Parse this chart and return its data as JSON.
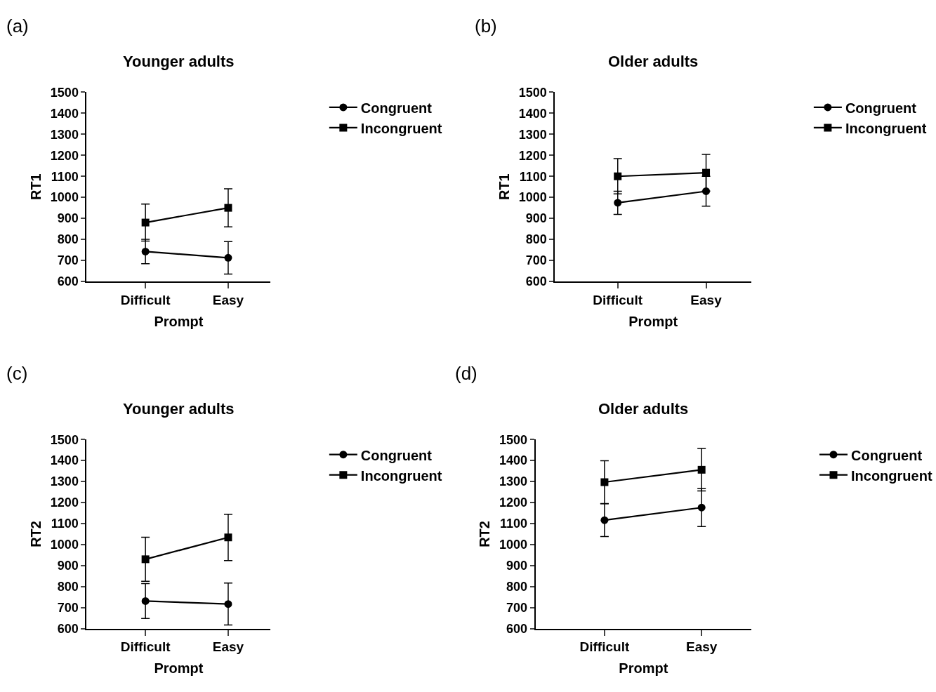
{
  "chart_data": [
    {
      "type": "line",
      "title": "Younger adults",
      "xlabel": "Prompt",
      "ylabel": "RT1",
      "annotations": [
        "(a)"
      ],
      "categories": [
        "Difficult",
        "Easy"
      ],
      "ylim": [
        600,
        1500
      ],
      "yticks": [
        600,
        700,
        800,
        900,
        1000,
        1100,
        1200,
        1300,
        1400,
        1500
      ],
      "legend": "right",
      "series": [
        {
          "name": "Congruent",
          "color": "#000000",
          "marker": "circle",
          "values": [
            742,
            712
          ],
          "errors": [
            58,
            77
          ]
        },
        {
          "name": "Incongruent",
          "color": "#000000",
          "marker": "square",
          "values": [
            880,
            950
          ],
          "errors": [
            88,
            91
          ]
        }
      ]
    },
    {
      "type": "line",
      "title": "Older adults",
      "xlabel": "Prompt",
      "ylabel": "RT1",
      "annotations": [
        "(b)"
      ],
      "categories": [
        "Difficult",
        "Easy"
      ],
      "ylim": [
        600,
        1500
      ],
      "yticks": [
        600,
        700,
        800,
        900,
        1000,
        1100,
        1200,
        1300,
        1400,
        1500
      ],
      "legend": "right",
      "series": [
        {
          "name": "Congruent",
          "color": "#000000",
          "marker": "circle",
          "values": [
            974,
            1029
          ],
          "errors": [
            55,
            71
          ]
        },
        {
          "name": "Incongruent",
          "color": "#000000",
          "marker": "square",
          "values": [
            1100,
            1117
          ],
          "errors": [
            84,
            87
          ]
        }
      ]
    },
    {
      "type": "line",
      "title": "Younger adults",
      "xlabel": "Prompt",
      "ylabel": "RT2",
      "annotations": [
        "(c)"
      ],
      "categories": [
        "Difficult",
        "Easy"
      ],
      "ylim": [
        600,
        1500
      ],
      "yticks": [
        600,
        700,
        800,
        900,
        1000,
        1100,
        1200,
        1300,
        1400,
        1500
      ],
      "legend": "right",
      "series": [
        {
          "name": "Congruent",
          "color": "#000000",
          "marker": "circle",
          "values": [
            731,
            717
          ],
          "errors": [
            83,
            100
          ]
        },
        {
          "name": "Incongruent",
          "color": "#000000",
          "marker": "square",
          "values": [
            930,
            1034
          ],
          "errors": [
            105,
            110
          ]
        }
      ]
    },
    {
      "type": "line",
      "title": "Older adults",
      "xlabel": "Prompt",
      "ylabel": "RT2",
      "annotations": [
        "(d)"
      ],
      "categories": [
        "Difficult",
        "Easy"
      ],
      "ylim": [
        600,
        1500
      ],
      "yticks": [
        600,
        700,
        800,
        900,
        1000,
        1100,
        1200,
        1300,
        1400,
        1500
      ],
      "legend": "right",
      "series": [
        {
          "name": "Congruent",
          "color": "#000000",
          "marker": "circle",
          "values": [
            1116,
            1176
          ],
          "errors": [
            78,
            90
          ]
        },
        {
          "name": "Incongruent",
          "color": "#000000",
          "marker": "square",
          "values": [
            1297,
            1356
          ],
          "errors": [
            102,
            101
          ]
        }
      ]
    }
  ]
}
